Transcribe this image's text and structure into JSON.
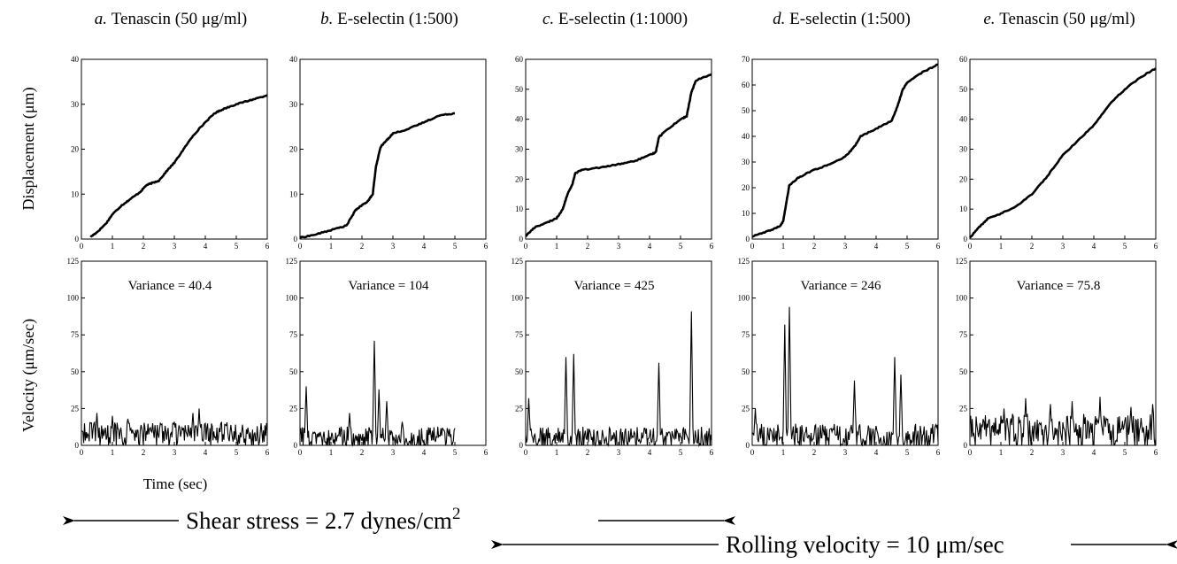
{
  "figure": {
    "y_label_top": "Displacement (μm)",
    "y_label_bottom": "Velocity (μm/sec)",
    "x_label": "Time (sec)",
    "shear_label": "Shear stress = 2.7 dynes/cm",
    "shear_superscript": "2",
    "rolling_label": "Rolling velocity = 10 μm/sec",
    "colors": {
      "line": "#000000",
      "background": "#ffffff"
    }
  },
  "chart_data": [
    {
      "type": "line",
      "letter": "a.",
      "title": "Tenascin (50 μg/ml)",
      "displacement": {
        "xlim": [
          0,
          6
        ],
        "ylim": [
          0,
          40
        ],
        "xticks": [
          0,
          1,
          2,
          3,
          4,
          5,
          6
        ],
        "yticks": [
          0,
          10,
          20,
          30,
          40
        ],
        "x": [
          0.3,
          0.5,
          0.8,
          1.0,
          1.3,
          1.6,
          1.9,
          2.1,
          2.3,
          2.5,
          2.8,
          3.0,
          3.3,
          3.6,
          4.0,
          4.3,
          4.6,
          5.0,
          5.5,
          6.0
        ],
        "y": [
          0.5,
          1.5,
          3.5,
          5.5,
          7.5,
          9,
          10.5,
          12,
          12.5,
          13,
          15.5,
          17,
          20,
          23,
          26,
          28,
          29,
          30,
          31,
          32
        ]
      },
      "velocity": {
        "xlim": [
          0,
          6
        ],
        "ylim": [
          0,
          125
        ],
        "xticks": [
          0,
          1,
          2,
          3,
          4,
          5,
          6
        ],
        "yticks": [
          0,
          25,
          50,
          75,
          100,
          125
        ],
        "variance": "Variance = 40.4",
        "peaks": [
          [
            0.2,
            8
          ],
          [
            0.5,
            22
          ],
          [
            1.0,
            20
          ],
          [
            1.5,
            18
          ],
          [
            2.3,
            15
          ],
          [
            3.0,
            16
          ],
          [
            3.6,
            22
          ],
          [
            3.8,
            25
          ],
          [
            4.5,
            15
          ],
          [
            5.2,
            14
          ],
          [
            5.8,
            15
          ]
        ],
        "baseline": 7,
        "noise": 9,
        "end": 6.0
      }
    },
    {
      "type": "line",
      "letter": "b.",
      "title": "E-selectin (1:500)",
      "displacement": {
        "xlim": [
          0,
          6
        ],
        "ylim": [
          0,
          40
        ],
        "xticks": [
          0,
          1,
          2,
          3,
          4,
          5,
          6
        ],
        "yticks": [
          0,
          10,
          20,
          30,
          40
        ],
        "x": [
          0.0,
          0.5,
          1.0,
          1.5,
          1.8,
          2.0,
          2.2,
          2.35,
          2.45,
          2.6,
          2.8,
          3.0,
          3.5,
          4.0,
          4.5,
          5.0
        ],
        "y": [
          0.3,
          1.0,
          2.0,
          3.0,
          6.5,
          7.5,
          8.5,
          10,
          16,
          20.5,
          22,
          23.5,
          24.5,
          26,
          27.5,
          28
        ]
      },
      "velocity": {
        "xlim": [
          0,
          6
        ],
        "ylim": [
          0,
          125
        ],
        "xticks": [
          0,
          1,
          2,
          3,
          4,
          5,
          6
        ],
        "yticks": [
          0,
          25,
          50,
          75,
          100,
          125
        ],
        "variance": "Variance = 104",
        "peaks": [
          [
            0.2,
            40
          ],
          [
            1.6,
            22
          ],
          [
            2.4,
            71
          ],
          [
            2.55,
            38
          ],
          [
            2.8,
            30
          ],
          [
            3.3,
            16
          ],
          [
            4.2,
            12
          ]
        ],
        "baseline": 5,
        "noise": 8,
        "end": 5.0
      }
    },
    {
      "type": "line",
      "letter": "c.",
      "title": "E-selectin (1:1000)",
      "displacement": {
        "xlim": [
          0,
          6
        ],
        "ylim": [
          0,
          60
        ],
        "xticks": [
          0,
          1,
          2,
          3,
          4,
          5,
          6
        ],
        "yticks": [
          0,
          10,
          20,
          30,
          40,
          50,
          60
        ],
        "x": [
          0.0,
          0.3,
          0.7,
          1.0,
          1.2,
          1.35,
          1.5,
          1.6,
          1.8,
          2.5,
          3.0,
          3.5,
          4.0,
          4.2,
          4.3,
          4.5,
          5.0,
          5.2,
          5.35,
          5.5,
          6.0
        ],
        "y": [
          1,
          4,
          5.5,
          7,
          10,
          15,
          18,
          22,
          23,
          24,
          25,
          26,
          28,
          29,
          34,
          36,
          40,
          41,
          49,
          53,
          55
        ]
      },
      "velocity": {
        "xlim": [
          0,
          6
        ],
        "ylim": [
          0,
          125
        ],
        "xticks": [
          0,
          1,
          2,
          3,
          4,
          5,
          6
        ],
        "yticks": [
          0,
          25,
          50,
          75,
          100,
          125
        ],
        "variance": "Variance = 425",
        "peaks": [
          [
            0.1,
            32
          ],
          [
            1.3,
            60
          ],
          [
            1.55,
            62
          ],
          [
            4.3,
            56
          ],
          [
            5.35,
            91
          ]
        ],
        "baseline": 4,
        "noise": 9,
        "end": 6.0
      }
    },
    {
      "type": "line",
      "letter": "d.",
      "title": "E-selectin (1:500)",
      "displacement": {
        "xlim": [
          0,
          6
        ],
        "ylim": [
          0,
          70
        ],
        "xticks": [
          0,
          1,
          2,
          3,
          4,
          5,
          6
        ],
        "yticks": [
          0,
          10,
          20,
          30,
          40,
          50,
          60,
          70
        ],
        "x": [
          0.0,
          0.5,
          0.9,
          1.0,
          1.1,
          1.2,
          1.5,
          2.0,
          2.5,
          3.0,
          3.3,
          3.5,
          4.0,
          4.5,
          4.7,
          4.85,
          5.0,
          5.5,
          6.0
        ],
        "y": [
          1,
          3,
          5,
          7,
          14,
          21,
          24,
          27,
          29,
          32,
          36,
          40,
          43,
          46,
          52,
          58,
          61,
          65,
          68
        ]
      },
      "velocity": {
        "xlim": [
          0,
          6
        ],
        "ylim": [
          0,
          125
        ],
        "xticks": [
          0,
          1,
          2,
          3,
          4,
          5,
          6
        ],
        "yticks": [
          0,
          25,
          50,
          75,
          100,
          125
        ],
        "variance": "Variance = 246",
        "peaks": [
          [
            0.1,
            25
          ],
          [
            1.05,
            82
          ],
          [
            1.2,
            94
          ],
          [
            3.3,
            44
          ],
          [
            4.6,
            60
          ],
          [
            4.8,
            48
          ]
        ],
        "baseline": 5,
        "noise": 10,
        "end": 6.0
      }
    },
    {
      "type": "line",
      "letter": "e.",
      "title": "Tenascin (50 μg/ml)",
      "displacement": {
        "xlim": [
          0,
          6
        ],
        "ylim": [
          0,
          60
        ],
        "xticks": [
          0,
          1,
          2,
          3,
          4,
          5,
          6
        ],
        "yticks": [
          0,
          10,
          20,
          30,
          40,
          50,
          60
        ],
        "x": [
          0.0,
          0.3,
          0.6,
          1.0,
          1.5,
          2.0,
          2.5,
          3.0,
          3.5,
          4.0,
          4.5,
          5.0,
          5.5,
          6.0
        ],
        "y": [
          0.5,
          4,
          7,
          8.5,
          11,
          15,
          21,
          28,
          33,
          38,
          45,
          50,
          54,
          57
        ]
      },
      "velocity": {
        "xlim": [
          0,
          6
        ],
        "ylim": [
          0,
          125
        ],
        "xticks": [
          0,
          1,
          2,
          3,
          4,
          5,
          6
        ],
        "yticks": [
          0,
          25,
          50,
          75,
          100,
          125
        ],
        "variance": "Variance = 75.8",
        "peaks": [
          [
            1.1,
            25
          ],
          [
            1.8,
            32
          ],
          [
            2.6,
            28
          ],
          [
            3.3,
            30
          ],
          [
            4.2,
            33
          ],
          [
            5.2,
            26
          ],
          [
            5.9,
            28
          ]
        ],
        "baseline": 10,
        "noise": 12,
        "end": 6.0
      }
    }
  ]
}
